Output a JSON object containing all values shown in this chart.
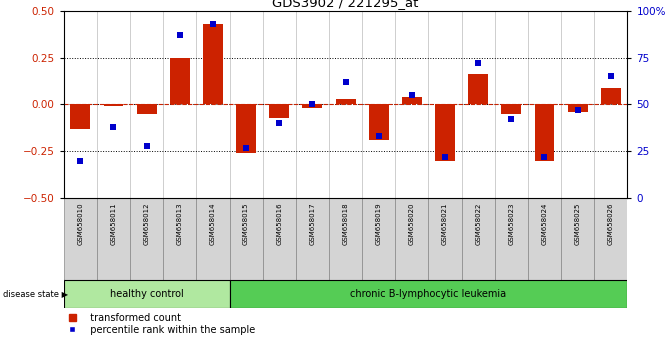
{
  "title": "GDS3902 / 221295_at",
  "samples": [
    "GSM658010",
    "GSM658011",
    "GSM658012",
    "GSM658013",
    "GSM658014",
    "GSM658015",
    "GSM658016",
    "GSM658017",
    "GSM658018",
    "GSM658019",
    "GSM658020",
    "GSM658021",
    "GSM658022",
    "GSM658023",
    "GSM658024",
    "GSM658025",
    "GSM658026"
  ],
  "transformed_count": [
    -0.13,
    -0.01,
    -0.05,
    0.25,
    0.43,
    -0.26,
    -0.07,
    -0.02,
    0.03,
    -0.19,
    0.04,
    -0.3,
    0.16,
    -0.05,
    -0.3,
    -0.04,
    0.09
  ],
  "percentile_rank": [
    20,
    38,
    28,
    87,
    93,
    27,
    40,
    50,
    62,
    33,
    55,
    22,
    72,
    42,
    22,
    47,
    65
  ],
  "bar_color": "#cc2200",
  "dot_color": "#0000cc",
  "healthy_color": "#b0e8a0",
  "leukemia_color": "#55cc55",
  "healthy_samples": 5,
  "ylim_left": [
    -0.5,
    0.5
  ],
  "ylim_right": [
    0,
    100
  ],
  "yticks_left": [
    -0.5,
    -0.25,
    0,
    0.25,
    0.5
  ],
  "yticks_right": [
    0,
    25,
    50,
    75,
    100
  ],
  "dotted_lines": [
    -0.25,
    0,
    0.25
  ],
  "bg_color": "#ffffff",
  "label_bar": "transformed count",
  "label_dot": "percentile rank within the sample",
  "disease_state_label": "disease state",
  "healthy_label": "healthy control",
  "leukemia_label": "chronic B-lymphocytic leukemia"
}
